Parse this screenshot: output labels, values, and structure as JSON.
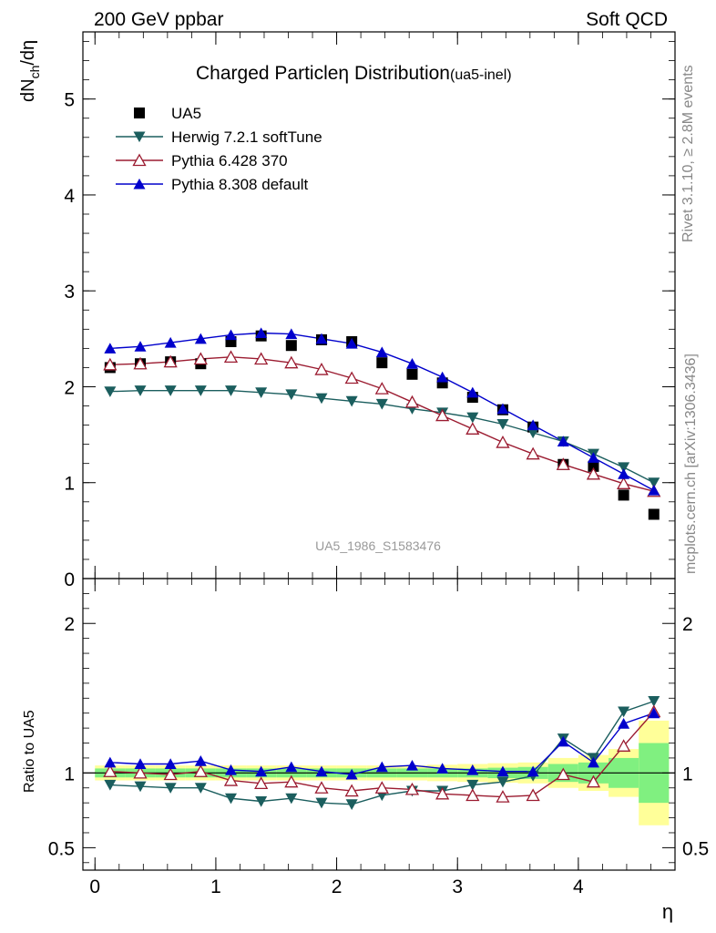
{
  "header": {
    "left": "200 GeV ppbar",
    "right": "Soft QCD"
  },
  "side_texts": {
    "rivet": "Rivet 3.1.10, ≥ 2.8M events",
    "mcplots": "mcplots.cern.ch [arXiv:1306.3436]"
  },
  "chart_data": [
    {
      "type": "scatter",
      "title": "Charged Particle",
      "title_symbol": "η",
      "title_rest": " Distribution",
      "title_small": "(ua5-inel)",
      "ylabel_main": "dN",
      "ylabel_sub": "ch",
      "ylabel_rest": "/dη",
      "watermark": "UA5_1986_S1583476",
      "xlim": [
        -0.1,
        4.8
      ],
      "ylim": [
        0,
        5.7
      ],
      "yticks": [
        {
          "v": 0,
          "label": "0"
        },
        {
          "v": 1,
          "label": "1"
        },
        {
          "v": 2,
          "label": "2"
        },
        {
          "v": 3,
          "label": "3"
        },
        {
          "v": 4,
          "label": "4"
        },
        {
          "v": 5,
          "label": "5"
        }
      ],
      "legend_position": "top-left",
      "x": [
        0.125,
        0.375,
        0.625,
        0.875,
        1.125,
        1.375,
        1.625,
        1.875,
        2.125,
        2.375,
        2.625,
        2.875,
        3.125,
        3.375,
        3.625,
        3.875,
        4.125,
        4.375,
        4.625
      ],
      "series": [
        {
          "name": "UA5",
          "color": "#000000",
          "marker": "square",
          "line": false,
          "values": [
            2.2,
            2.24,
            2.26,
            2.24,
            2.47,
            2.53,
            2.43,
            2.49,
            2.47,
            2.25,
            2.13,
            2.04,
            1.89,
            1.76,
            1.58,
            1.19,
            1.17,
            0.87,
            0.67
          ]
        },
        {
          "name": "Herwig 7.2.1 softTune",
          "color": "#1b5e5e",
          "marker": "triangle-down",
          "line": true,
          "values": [
            1.95,
            1.96,
            1.96,
            1.96,
            1.96,
            1.94,
            1.92,
            1.88,
            1.85,
            1.82,
            1.77,
            1.73,
            1.68,
            1.61,
            1.52,
            1.43,
            1.3,
            1.16,
            1.0
          ]
        },
        {
          "name": "Pythia 6.428 370",
          "color": "#9b1b30",
          "marker": "triangle-up-open",
          "line": true,
          "values": [
            2.23,
            2.24,
            2.26,
            2.29,
            2.31,
            2.29,
            2.25,
            2.18,
            2.09,
            1.98,
            1.84,
            1.7,
            1.56,
            1.42,
            1.3,
            1.19,
            1.09,
            0.99,
            0.91
          ]
        },
        {
          "name": "Pythia 8.308 default",
          "color": "#0000cc",
          "marker": "triangle-up",
          "line": true,
          "values": [
            2.4,
            2.42,
            2.46,
            2.5,
            2.54,
            2.56,
            2.55,
            2.5,
            2.45,
            2.36,
            2.24,
            2.1,
            1.94,
            1.77,
            1.6,
            1.43,
            1.26,
            1.09,
            0.92
          ]
        }
      ]
    },
    {
      "type": "scatter",
      "ylabel": "Ratio to UA5",
      "xlabel": "η",
      "xlim": [
        -0.1,
        4.8
      ],
      "ylim": [
        0.35,
        2.3
      ],
      "reference": 1,
      "xticks": [
        {
          "v": 0,
          "label": "0"
        },
        {
          "v": 1,
          "label": "1"
        },
        {
          "v": 2,
          "label": "2"
        },
        {
          "v": 3,
          "label": "3"
        },
        {
          "v": 4,
          "label": "4"
        }
      ],
      "yticks": [
        {
          "v": 0.5,
          "label": "0.5"
        },
        {
          "v": 1,
          "label": "1"
        },
        {
          "v": 2,
          "label": "2"
        }
      ],
      "bins": [
        [
          0,
          0.25
        ],
        [
          0.25,
          0.5
        ],
        [
          0.5,
          0.75
        ],
        [
          0.75,
          1.0
        ],
        [
          1.0,
          1.25
        ],
        [
          1.25,
          1.5
        ],
        [
          1.5,
          1.75
        ],
        [
          1.75,
          2.0
        ],
        [
          2.0,
          2.25
        ],
        [
          2.25,
          2.5
        ],
        [
          2.5,
          2.75
        ],
        [
          2.75,
          3.0
        ],
        [
          3.0,
          3.25
        ],
        [
          3.25,
          3.5
        ],
        [
          3.5,
          3.75
        ],
        [
          3.75,
          4.0
        ],
        [
          4.0,
          4.25
        ],
        [
          4.25,
          4.5
        ],
        [
          4.5,
          4.75
        ]
      ],
      "band_stat": [
        0.03,
        0.03,
        0.03,
        0.03,
        0.03,
        0.03,
        0.03,
        0.03,
        0.03,
        0.03,
        0.03,
        0.03,
        0.03,
        0.035,
        0.04,
        0.06,
        0.07,
        0.1,
        0.2
      ],
      "band_total": [
        0.05,
        0.05,
        0.05,
        0.05,
        0.05,
        0.05,
        0.05,
        0.05,
        0.05,
        0.05,
        0.05,
        0.055,
        0.06,
        0.065,
        0.07,
        0.1,
        0.12,
        0.16,
        0.35
      ],
      "band_colors": {
        "stat": "#80f080",
        "total": "#ffff99"
      },
      "x": [
        0.125,
        0.375,
        0.625,
        0.875,
        1.125,
        1.375,
        1.625,
        1.875,
        2.125,
        2.375,
        2.625,
        2.875,
        3.125,
        3.375,
        3.625,
        3.875,
        4.125,
        4.375,
        4.625
      ],
      "series": [
        {
          "name": "Herwig 7.2.1 softTune",
          "color": "#1b5e5e",
          "marker": "triangle-down",
          "values": [
            0.92,
            0.91,
            0.9,
            0.9,
            0.83,
            0.81,
            0.83,
            0.8,
            0.79,
            0.85,
            0.88,
            0.88,
            0.92,
            0.94,
            0.98,
            1.23,
            1.1,
            1.41,
            1.48
          ]
        },
        {
          "name": "Pythia 6.428 370",
          "color": "#9b1b30",
          "marker": "triangle-up-open",
          "values": [
            1.01,
            1.0,
            0.99,
            1.01,
            0.95,
            0.93,
            0.94,
            0.9,
            0.88,
            0.9,
            0.89,
            0.86,
            0.85,
            0.84,
            0.85,
            0.99,
            0.94,
            1.18,
            1.41
          ]
        },
        {
          "name": "Pythia 8.308 default",
          "color": "#0000cc",
          "marker": "triangle-up",
          "values": [
            1.07,
            1.06,
            1.06,
            1.08,
            1.02,
            1.01,
            1.04,
            1.01,
            0.99,
            1.04,
            1.05,
            1.03,
            1.02,
            1.01,
            1.01,
            1.21,
            1.07,
            1.33,
            1.4
          ]
        }
      ]
    }
  ]
}
